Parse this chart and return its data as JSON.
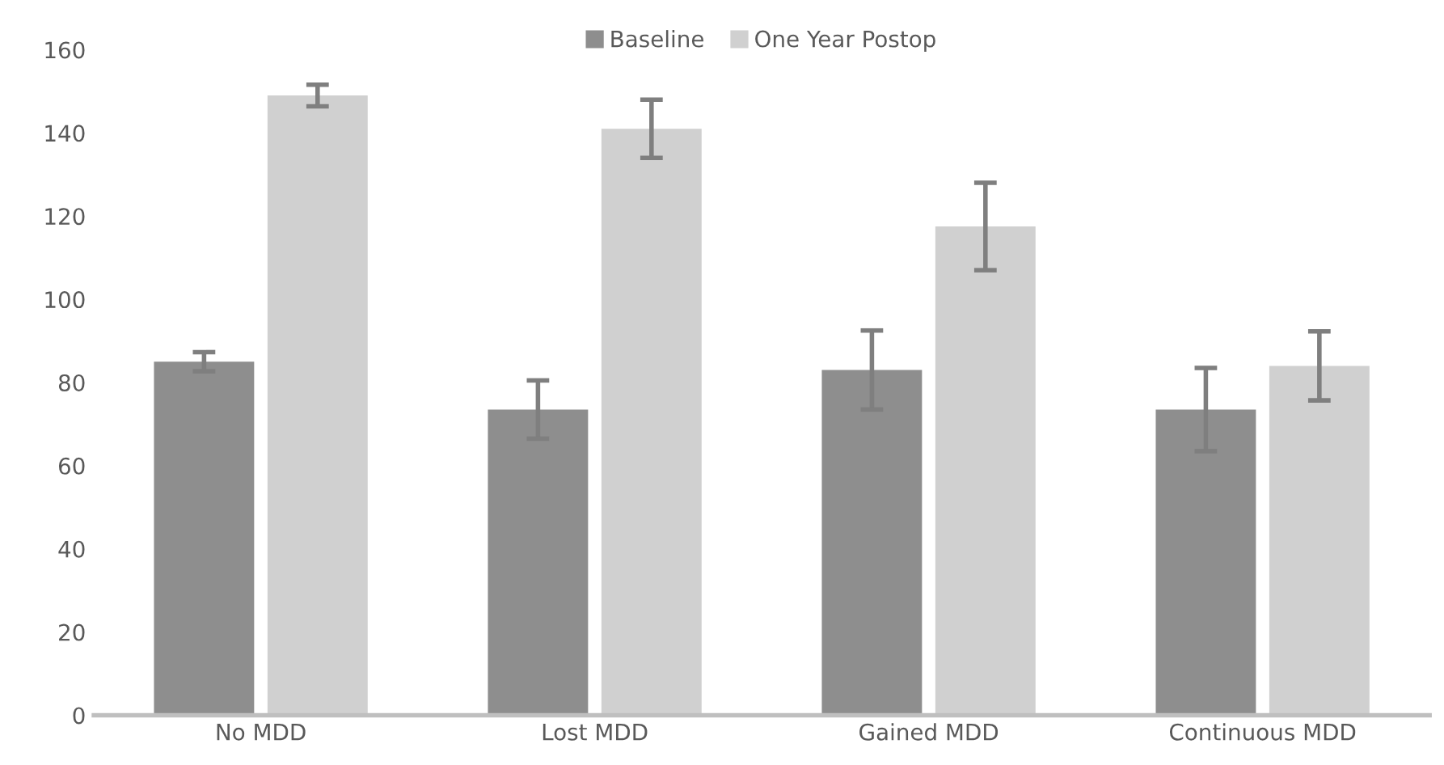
{
  "chart_data": {
    "type": "bar",
    "categories": [
      "No MDD",
      "Lost MDD",
      "Gained MDD",
      "Continuous MDD"
    ],
    "series": [
      {
        "name": "Baseline",
        "color": "#8e8e8e",
        "values": [
          85,
          73.5,
          83,
          73.5
        ],
        "errors": [
          2.3,
          7,
          9.5,
          10
        ]
      },
      {
        "name": "One Year Postop",
        "color": "#d0d0d0",
        "values": [
          149,
          141,
          117.5,
          84
        ],
        "errors": [
          2.6,
          7,
          10.5,
          8.3
        ]
      }
    ],
    "ylim": [
      0,
      160
    ],
    "yticks": [
      0,
      20,
      40,
      60,
      80,
      100,
      120,
      140,
      160
    ],
    "legend": "top"
  }
}
